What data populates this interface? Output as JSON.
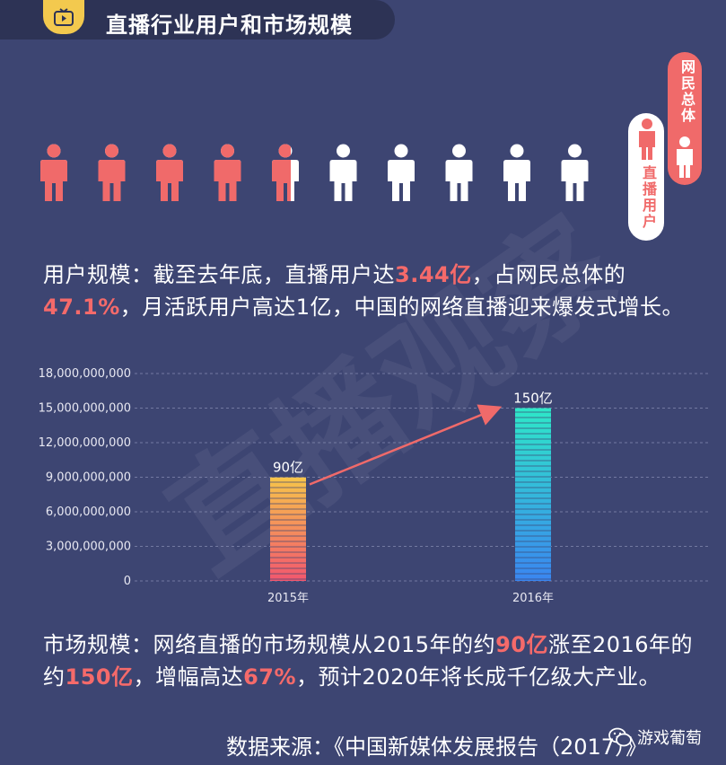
{
  "header": {
    "title": "直播行业用户和市场规模"
  },
  "watermark": "直播观察",
  "legend": {
    "total_label": "网民总体",
    "live_label": "直播用户"
  },
  "people": {
    "total": 10,
    "filled": 4.7,
    "fill_color": "#f06a6a",
    "empty_color": "#ffffff"
  },
  "para1": {
    "p1": "用户规模：截至去年底，直播用户达",
    "h1": "3.44亿",
    "p2": "，占网民总体的",
    "h2": "47.1%",
    "p3": "，月活跃用户高达1亿，中国的网络直播迎来爆发式增长。"
  },
  "chart_data": {
    "type": "bar",
    "categories": [
      "2015年",
      "2016年"
    ],
    "values": [
      9000000000,
      15000000000
    ],
    "data_labels": [
      "90亿",
      "150亿"
    ],
    "ytick_labels": [
      "18,000,000,000",
      "15,000,000,000",
      "12,000,000,000",
      "9,000,000,000",
      "6,000,000,000",
      "3,000,000,000",
      "0"
    ],
    "ytick_values": [
      18000000000,
      15000000000,
      12000000000,
      9000000000,
      6000000000,
      3000000000,
      0
    ],
    "ylim": [
      0,
      18000000000
    ],
    "grid": true,
    "colors": {
      "bar1_top": "#f7c54a",
      "bar1_bottom": "#f2576e",
      "bar2_top": "#2ee8c8",
      "bar2_bottom": "#3a86f0",
      "arrow": "#f06a6a"
    }
  },
  "para2": {
    "p1": "市场规模：网络直播的市场规模从2015年的约",
    "h1": "90亿",
    "p2": "涨至2016年的约",
    "h2": "150亿",
    "p3": "，增幅高达",
    "h3": "67%",
    "p4": "，预计2020年将长成千亿级大产业。"
  },
  "source": "数据来源：《中国新媒体发展报告（2017）》",
  "wechat_name": "游戏葡萄"
}
